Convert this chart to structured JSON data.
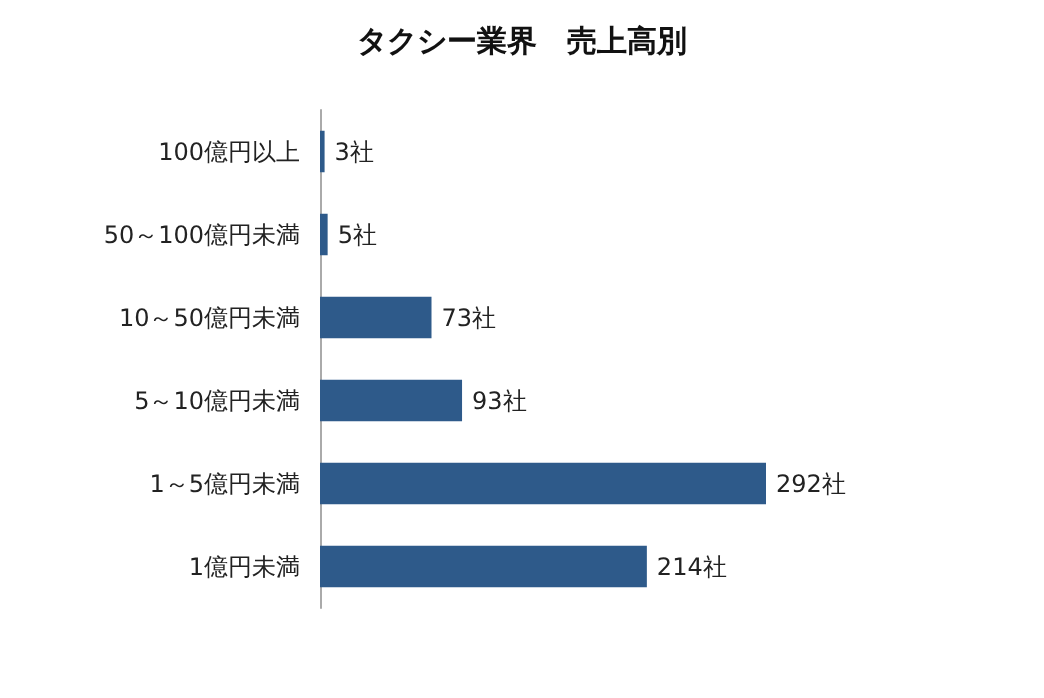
{
  "chart_data": {
    "type": "bar",
    "orientation": "horizontal",
    "title": "タクシー業界　売上高別",
    "categories": [
      "100億円以上",
      "50～100億円未満",
      "10～50億円未満",
      "5～10億円未満",
      "1～5億円未満",
      "1億円未満"
    ],
    "values": [
      3,
      5,
      73,
      93,
      292,
      214
    ],
    "value_labels": [
      "3社",
      "5社",
      "73社",
      "93社",
      "292社",
      "214社"
    ],
    "color": "#2e5a8a"
  }
}
